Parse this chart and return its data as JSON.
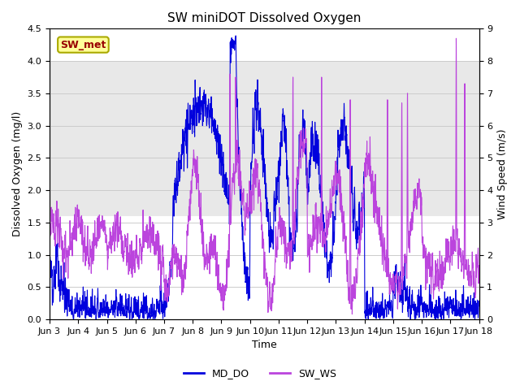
{
  "title": "SW miniDOT Dissolved Oxygen",
  "xlabel": "Time",
  "ylabel_left": "Dissolved Oxygen (mg/l)",
  "ylabel_right": "Wind Speed (m/s)",
  "ylim_left": [
    0,
    4.5
  ],
  "ylim_right": [
    0,
    9.0
  ],
  "yticks_left": [
    0.0,
    0.5,
    1.0,
    1.5,
    2.0,
    2.5,
    3.0,
    3.5,
    4.0,
    4.5
  ],
  "yticks_right": [
    0.0,
    1.0,
    2.0,
    3.0,
    4.0,
    5.0,
    6.0,
    7.0,
    8.0,
    9.0
  ],
  "color_do": "#0000dd",
  "color_ws": "#bb44dd",
  "legend_labels": [
    "MD_DO",
    "SW_WS"
  ],
  "annotation_text": "SW_met",
  "annotation_color": "#990000",
  "annotation_bg": "#ffff99",
  "annotation_border": "#aaaa00",
  "grid_color": "#cccccc",
  "plot_bg_color": "#ffffff",
  "shading_color": "#e8e8e8",
  "shading_ylim": [
    1.6,
    4.0
  ],
  "xtick_labels": [
    "Jun 3",
    "Jun 4",
    "Jun 5",
    "Jun 6",
    "Jun 7",
    "Jun 8",
    "Jun 9",
    "Jun 10",
    "Jun 11",
    "Jun 12",
    "Jun 13",
    "Jun 14",
    "Jun 15",
    "Jun 16",
    "Jun 17",
    "Jun 18"
  ],
  "n_points": 5000
}
